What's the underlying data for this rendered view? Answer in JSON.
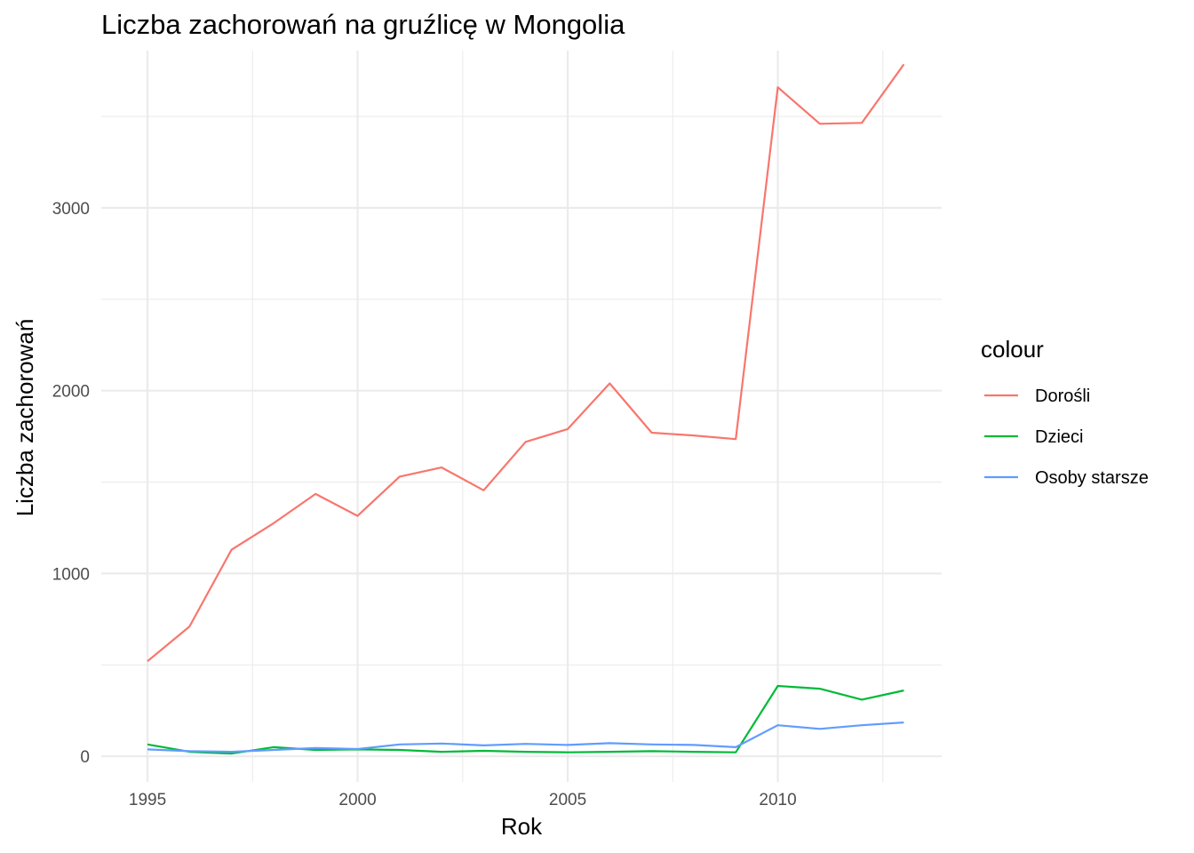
{
  "chart_data": {
    "type": "line",
    "title": "Liczba zachorowań na gruźlicę w Mongolia",
    "xlabel": "Rok",
    "ylabel": "Liczba zachorowań",
    "x": [
      1995,
      1996,
      1997,
      1998,
      1999,
      2000,
      2001,
      2002,
      2003,
      2004,
      2005,
      2006,
      2007,
      2008,
      2009,
      2010,
      2011,
      2012,
      2013
    ],
    "xlim": [
      1993.9,
      2013.9
    ],
    "ylim": [
      -140,
      3860
    ],
    "x_ticks": [
      1995,
      2000,
      2005,
      2010
    ],
    "x_tick_labels": [
      "1995",
      "2000",
      "2005",
      "2010"
    ],
    "y_ticks": [
      0,
      1000,
      2000,
      3000
    ],
    "y_tick_labels": [
      "0",
      "1000",
      "2000",
      "3000"
    ],
    "grid": true,
    "legend_position": "right",
    "legend_title": "colour",
    "series": [
      {
        "name": "Dorośli",
        "color": "#F8766D",
        "values": [
          520,
          710,
          1130,
          1275,
          1435,
          1315,
          1530,
          1580,
          1455,
          1720,
          1790,
          2040,
          1770,
          1755,
          1735,
          3660,
          3460,
          3465,
          3785
        ]
      },
      {
        "name": "Dzieci",
        "color": "#00BA38",
        "values": [
          65,
          25,
          15,
          50,
          35,
          38,
          35,
          25,
          30,
          25,
          22,
          25,
          28,
          25,
          22,
          385,
          370,
          310,
          360
        ]
      },
      {
        "name": "Osoby starsze",
        "color": "#619CFF",
        "values": [
          38,
          28,
          25,
          35,
          45,
          40,
          65,
          70,
          60,
          68,
          62,
          72,
          65,
          62,
          50,
          170,
          150,
          170,
          185
        ]
      }
    ]
  }
}
